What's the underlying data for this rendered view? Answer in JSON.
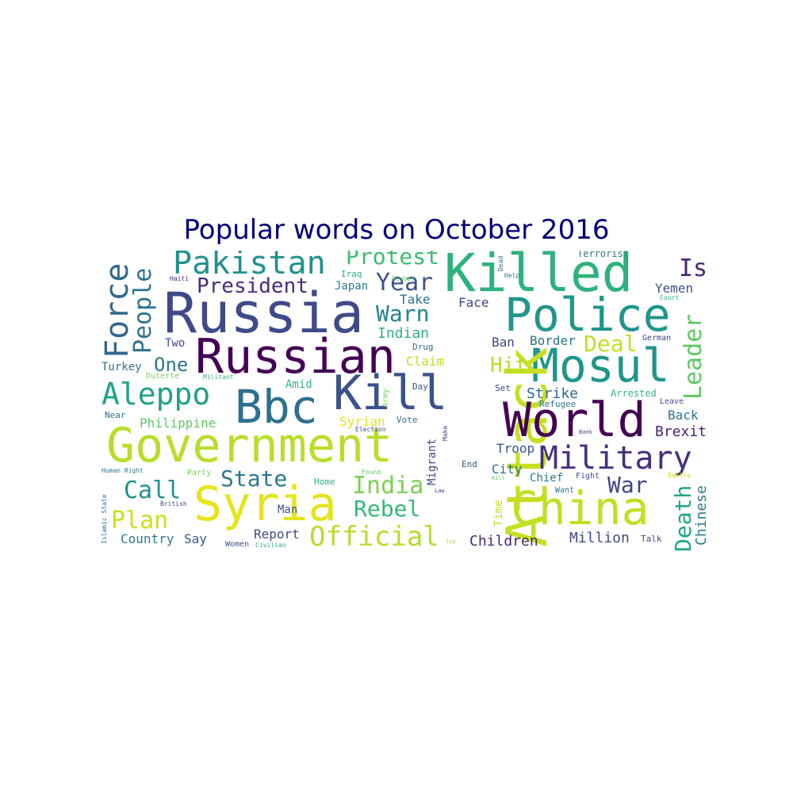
{
  "title": "Popular words on October 2016",
  "words": [
    {
      "text": "Russia",
      "color": "#3e4a89"
    },
    {
      "text": "Russian",
      "color": "#440154"
    },
    {
      "text": "Killed",
      "color": "#2db27d"
    },
    {
      "text": "Police",
      "color": "#1f968b"
    },
    {
      "text": "Mosul",
      "color": "#1f968b"
    },
    {
      "text": "Attack",
      "color": "#c6df23"
    },
    {
      "text": "Government",
      "color": "#b8de29"
    },
    {
      "text": "World",
      "color": "#440154"
    },
    {
      "text": "Kill",
      "color": "#3b528b"
    },
    {
      "text": "Bbc",
      "color": "#2d708e"
    },
    {
      "text": "China",
      "color": "#c2df23"
    },
    {
      "text": "Syria",
      "color": "#e5e419"
    },
    {
      "text": "Pakistan",
      "color": "#21918c"
    },
    {
      "text": "Military",
      "color": "#472f7d"
    },
    {
      "text": "Aleppo",
      "color": "#1fa187"
    },
    {
      "text": "Force",
      "color": "#31688e"
    },
    {
      "text": "People",
      "color": "#2c728e"
    },
    {
      "text": "Protest",
      "color": "#3dbc74"
    },
    {
      "text": "President",
      "color": "#472c7a"
    },
    {
      "text": "Year",
      "color": "#3b528b"
    },
    {
      "text": "Warn",
      "color": "#26828e"
    },
    {
      "text": "Isi",
      "color": "#482475"
    },
    {
      "text": "Leader",
      "color": "#5ec962"
    },
    {
      "text": "Deal",
      "color": "#c2df23"
    },
    {
      "text": "Hit",
      "color": "#b5de2b"
    },
    {
      "text": "One",
      "color": "#2a788e"
    },
    {
      "text": "State",
      "color": "#2a788e"
    },
    {
      "text": "India",
      "color": "#7ad151"
    },
    {
      "text": "Rebel",
      "color": "#35b779"
    },
    {
      "text": "Official",
      "color": "#b5de2b"
    },
    {
      "text": "Call",
      "color": "#21918c"
    },
    {
      "text": "Plan",
      "color": "#c8e020"
    },
    {
      "text": "War",
      "color": "#414487"
    },
    {
      "text": "Death",
      "color": "#20a486"
    },
    {
      "text": "Chinese",
      "color": "#2a788e"
    },
    {
      "text": "Children",
      "color": "#482878"
    },
    {
      "text": "Million",
      "color": "#3e4a89"
    },
    {
      "text": "Strike",
      "color": "#31688e"
    },
    {
      "text": "Brexit",
      "color": "#482475"
    },
    {
      "text": "Back",
      "color": "#2c728e"
    },
    {
      "text": "Yemen",
      "color": "#3b528b"
    },
    {
      "text": "Indian",
      "color": "#2db27d"
    },
    {
      "text": "Take",
      "color": "#2c728e"
    },
    {
      "text": "Face",
      "color": "#3e4a89"
    },
    {
      "text": "Ban",
      "color": "#3e4a89"
    },
    {
      "text": "Border",
      "color": "#2c728e"
    },
    {
      "text": "Claim",
      "color": "#c2df23"
    },
    {
      "text": "Amid",
      "color": "#35b779"
    },
    {
      "text": "Philippine",
      "color": "#5ec962"
    },
    {
      "text": "Syrian",
      "color": "#e7e419"
    },
    {
      "text": "Migrant",
      "color": "#3e4a89"
    },
    {
      "text": "Troop",
      "color": "#3b528b"
    },
    {
      "text": "City",
      "color": "#2c728e"
    },
    {
      "text": "Chief",
      "color": "#2a788e"
    },
    {
      "text": "Time",
      "color": "#c8e020"
    },
    {
      "text": "Report",
      "color": "#3e4a89"
    },
    {
      "text": "Man",
      "color": "#3b528b"
    },
    {
      "text": "Country",
      "color": "#2a788e"
    },
    {
      "text": "Say",
      "color": "#3b528b"
    },
    {
      "text": "Turkey",
      "color": "#2c728e"
    },
    {
      "text": "Two",
      "color": "#3e4a89"
    },
    {
      "text": "Japan",
      "color": "#2a788e"
    },
    {
      "text": "Drug",
      "color": "#31688e"
    },
    {
      "text": "Arrested",
      "color": "#35b779"
    },
    {
      "text": "Refugee",
      "color": "#2c728e"
    },
    {
      "text": "Set",
      "color": "#3e4a89"
    },
    {
      "text": "Day",
      "color": "#3b528b"
    },
    {
      "text": "Army",
      "color": "#7ad151"
    },
    {
      "text": "Vote",
      "color": "#2c728e"
    },
    {
      "text": "Election",
      "color": "#3e4a89"
    },
    {
      "text": "Make",
      "color": "#3e4a89"
    },
    {
      "text": "End",
      "color": "#3b528b"
    },
    {
      "text": "Found",
      "color": "#5ec962"
    },
    {
      "text": "Global",
      "color": "#5ec962"
    },
    {
      "text": "Iraq",
      "color": "#2db27d"
    },
    {
      "text": "Dead",
      "color": "#31688e"
    },
    {
      "text": "Help",
      "color": "#2c728e"
    },
    {
      "text": "Terrorist",
      "color": "#2a788e"
    },
    {
      "text": "Court",
      "color": "#2db27d"
    },
    {
      "text": "German",
      "color": "#3e4a89"
    },
    {
      "text": "Leave",
      "color": "#3e4a89"
    },
    {
      "text": "Battle",
      "color": "#c2df23"
    },
    {
      "text": "Talk",
      "color": "#3e4a89"
    },
    {
      "text": "Fight",
      "color": "#3b528b"
    },
    {
      "text": "Want",
      "color": "#2c728e"
    },
    {
      "text": "Bank",
      "color": "#3e4a89"
    },
    {
      "text": "Kill",
      "color": "#5ec962"
    },
    {
      "text": "Law",
      "color": "#3e4a89"
    },
    {
      "text": "Top",
      "color": "#b5de2b"
    },
    {
      "text": "Haiti",
      "color": "#482878"
    },
    {
      "text": "Duterte",
      "color": "#7ad151"
    },
    {
      "text": "Militant",
      "color": "#35b779"
    },
    {
      "text": "Near",
      "color": "#2c728e"
    },
    {
      "text": "Human Right",
      "color": "#2a788e"
    },
    {
      "text": "Islamic State",
      "color": "#2c728e"
    },
    {
      "text": "British",
      "color": "#3e4a89"
    },
    {
      "text": "Party",
      "color": "#7ad151"
    },
    {
      "text": "Home",
      "color": "#2db27d"
    },
    {
      "text": "Women",
      "color": "#3b528b"
    },
    {
      "text": "Civilian",
      "color": "#2db27d"
    }
  ]
}
